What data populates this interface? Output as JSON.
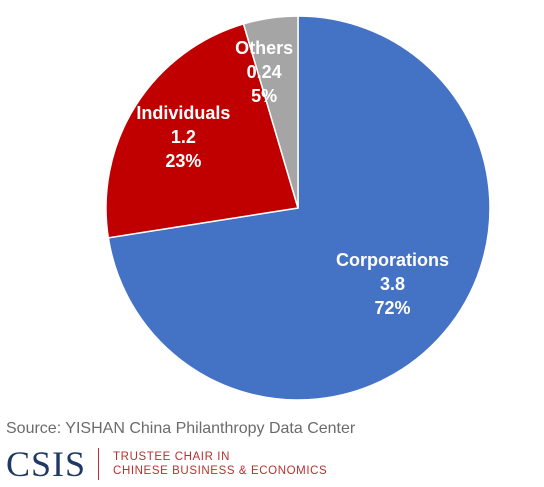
{
  "chart_data": {
    "type": "pie",
    "slices": [
      {
        "name": "Corporations",
        "value": "3.8",
        "percent": "72%",
        "color": "#4472c4"
      },
      {
        "name": "Individuals",
        "value": "1.2",
        "percent": "23%",
        "color": "#c00000"
      },
      {
        "name": "Others",
        "value": "0.24",
        "percent": "5%",
        "color": "#a5a5a5"
      }
    ],
    "start_slice": "Corporations",
    "direction": "clockwise",
    "values": [
      3.8,
      1.2,
      0.24
    ]
  },
  "source": "Source: YISHAN China Philanthropy Data Center",
  "footer": {
    "logo": "CSIS",
    "chair_line1": "TRUSTEE CHAIR IN",
    "chair_line2": "CHINESE BUSINESS & ECONOMICS"
  }
}
